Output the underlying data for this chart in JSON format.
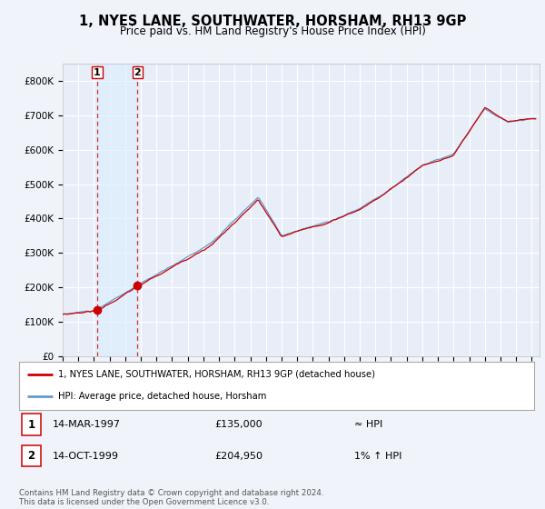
{
  "title": "1, NYES LANE, SOUTHWATER, HORSHAM, RH13 9GP",
  "subtitle": "Price paid vs. HM Land Registry's House Price Index (HPI)",
  "background_color": "#f0f4fa",
  "plot_bg_color": "#e8eef8",
  "grid_color": "#ffffff",
  "hpi_line_color": "#6699cc",
  "price_line_color": "#cc0000",
  "shade_color": "#ddeeff",
  "purchase1_date": 1997.21,
  "purchase1_price": 135000,
  "purchase1_label": "1",
  "purchase2_date": 1999.79,
  "purchase2_price": 204950,
  "purchase2_label": "2",
  "legend_house_label": "1, NYES LANE, SOUTHWATER, HORSHAM, RH13 9GP (detached house)",
  "legend_hpi_label": "HPI: Average price, detached house, Horsham",
  "table_row1": [
    "1",
    "14-MAR-1997",
    "£135,000",
    "≈ HPI"
  ],
  "table_row2": [
    "2",
    "14-OCT-1999",
    "£204,950",
    "1% ↑ HPI"
  ],
  "footer": "Contains HM Land Registry data © Crown copyright and database right 2024.\nThis data is licensed under the Open Government Licence v3.0.",
  "ylim": [
    0,
    850000
  ],
  "xlim_start": 1995.0,
  "xlim_end": 2025.5,
  "yticks": [
    0,
    100000,
    200000,
    300000,
    400000,
    500000,
    600000,
    700000,
    800000
  ]
}
